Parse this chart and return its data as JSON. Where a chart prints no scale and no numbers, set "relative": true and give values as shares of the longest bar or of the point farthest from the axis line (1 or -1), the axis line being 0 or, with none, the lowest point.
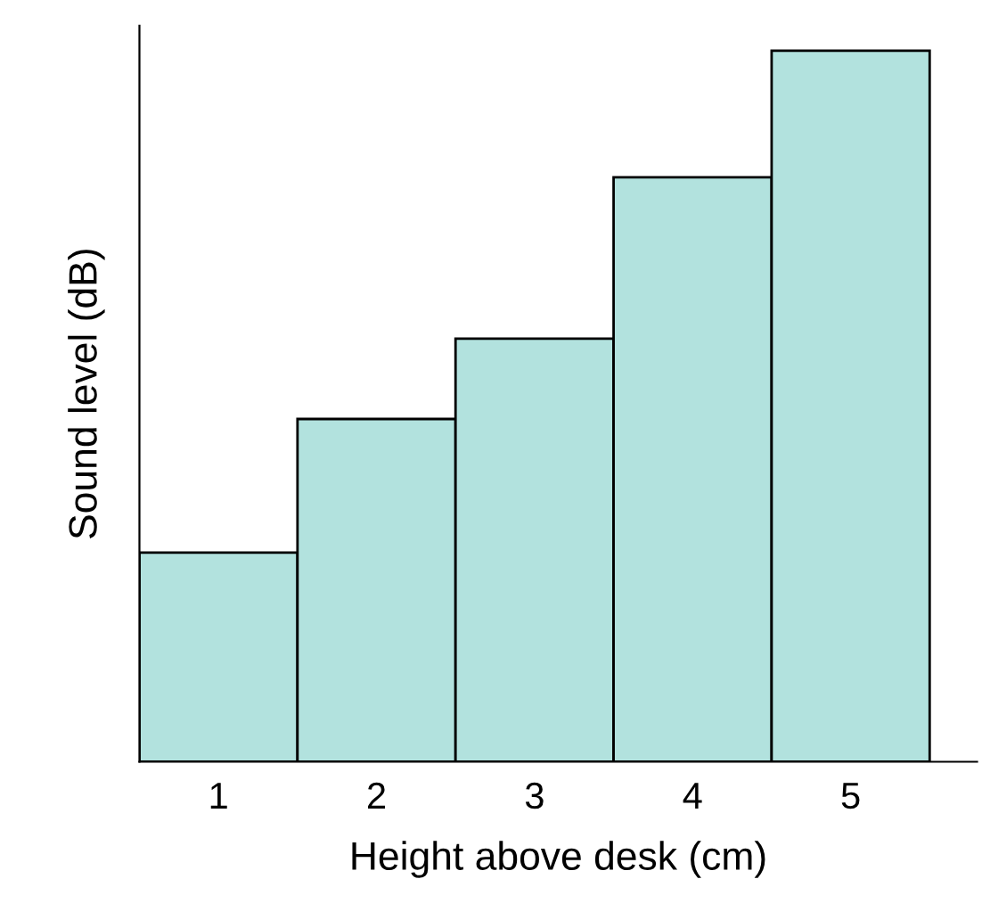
{
  "chart_data": {
    "type": "bar",
    "relative": true,
    "xlabel": "Height above desk (cm)",
    "ylabel": "Sound level (dB)",
    "categories": [
      "1",
      "2",
      "3",
      "4",
      "5"
    ],
    "values": [
      0.294,
      0.482,
      0.595,
      0.822,
      1.0
    ],
    "color": "#b2e2de",
    "grid": false,
    "legend": false
  }
}
